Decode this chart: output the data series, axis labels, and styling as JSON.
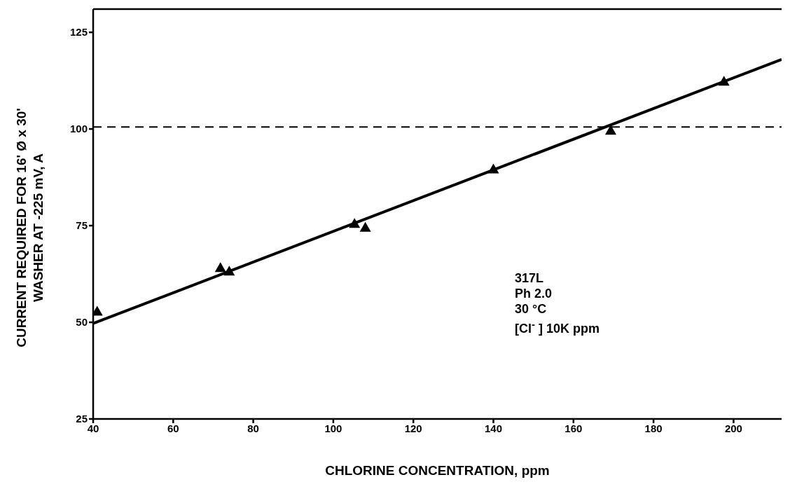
{
  "chart_data": {
    "type": "scatter",
    "xlabel": "CHLORINE CONCENTRATION, ppm",
    "ylabel": "CURRENT REQUIRED FOR 16' Ø x 30'\nWASHER AT -225 mV, A",
    "xlim": [
      40,
      212
    ],
    "xticks": [
      40,
      60,
      80,
      100,
      120,
      140,
      160,
      180,
      200
    ],
    "ylim": [
      25,
      131
    ],
    "yticks": [
      25,
      50,
      75,
      100,
      125
    ],
    "grid": false,
    "marker": "triangle",
    "series": [
      {
        "color": "#000000",
        "x": [
          41,
          71.8,
          74,
          105.3,
          108,
          140,
          169.3,
          197.6
        ],
        "values": [
          52.8,
          64.1,
          63.2,
          75.5,
          74.5,
          89.6,
          99.6,
          112.3
        ]
      },
      {
        "type": "line",
        "color": "#000000",
        "marker": "none",
        "line_style": "solid",
        "x": [
          40,
          212
        ],
        "values": [
          49.7,
          118
        ]
      }
    ],
    "ref_lines": [
      {
        "axis": "y",
        "value": 100.5,
        "color": "#000000",
        "line_style": "dashed"
      }
    ],
    "annotations": [
      "317L",
      "Ph 2.0",
      "30 °C",
      "[Cl$^{-}$ ] 10K ppm"
    ]
  }
}
